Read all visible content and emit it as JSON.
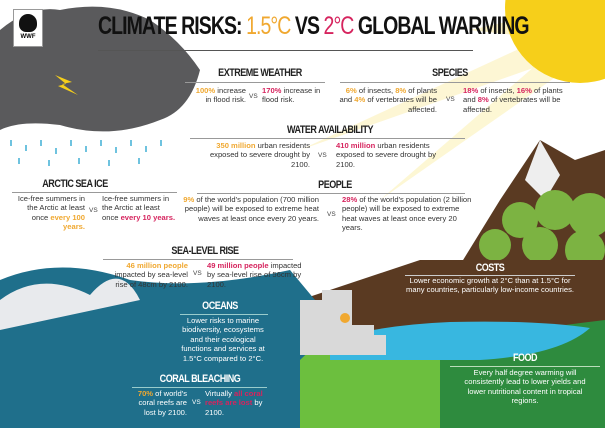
{
  "logo": {
    "text": "WWF"
  },
  "title": {
    "prefix": "CLIMATE RISKS: ",
    "a": "1.5°C",
    "mid": " VS ",
    "b": "2°C",
    "suffix": " GLOBAL WARMING"
  },
  "colors": {
    "low": "#f0a830",
    "high": "#d6245e",
    "cloud": "#5a5a5c",
    "sun": "#f6cf1a",
    "ocean": "#1f6f8b",
    "soil": "#5a3a22",
    "grass": "#3e9a3a",
    "lake": "#38b7e0"
  },
  "vs": "VS",
  "extreme_weather": {
    "title": "EXTREME WEATHER",
    "a": {
      "v": "100%",
      "t": " increase in flood risk."
    },
    "b": {
      "v": "170%",
      "t": " increase in flood risk."
    }
  },
  "species": {
    "title": "SPECIES",
    "a": {
      "v1": "6%",
      "t1": " of insects, ",
      "v2": "8%",
      "t2": " of plants and ",
      "v3": "4%",
      "t3": " of vertebrates will be affected."
    },
    "b": {
      "v1": "18%",
      "t1": " of insects, ",
      "v2": "16%",
      "t2": " of plants and ",
      "v3": "8%",
      "t3": " of vertebrates will be affected."
    }
  },
  "water": {
    "title": "WATER AVAILABILITY",
    "a": {
      "v": "350 million",
      "t": " urban residents exposed to severe drought by 2100."
    },
    "b": {
      "v": "410 million",
      "t": " urban residents exposed to severe drought by 2100."
    }
  },
  "arctic": {
    "title": "ARCTIC SEA ICE",
    "a": {
      "t": "Ice-free summers in the Arctic at least once ",
      "v": "every 100 years."
    },
    "b": {
      "t": "Ice-free summers in the Arctic at least once ",
      "v": "every 10 years."
    }
  },
  "people": {
    "title": "PEOPLE",
    "a": {
      "v": "9%",
      "t": " of the world's population (700 million people) will be exposed to extreme heat waves at least once every 20 years."
    },
    "b": {
      "v": "28%",
      "t": " of the world's population (2 billion people) will be exposed to extreme heat waves at least once every 20 years."
    }
  },
  "sea_level": {
    "title": "SEA-LEVEL RISE",
    "a": {
      "v": "46 million people",
      "t": " impacted by sea-level rise of 48cm by 2100."
    },
    "b": {
      "v": "49 million people",
      "t": " impacted by sea-level rise of 56cm by 2100."
    }
  },
  "costs": {
    "title": "COSTS",
    "text": "Lower economic growth at 2°C than at 1.5°C for many countries, particularly low-income countries."
  },
  "oceans": {
    "title": "OCEANS",
    "text": "Lower risks to marine biodiversity, ecosystems and their ecological functions and services at 1.5°C compared to 2°C."
  },
  "coral": {
    "title": "CORAL BLEACHING",
    "a": {
      "v": "70%",
      "t": " of world's coral reefs are lost by 2100."
    },
    "b": {
      "t1": "Virtually ",
      "v": "all coral reefs are lost",
      "t2": " by 2100."
    }
  },
  "food": {
    "title": "FOOD",
    "text": "Every half degree warming will consistently lead to lower yields and lower nutritional content in tropical regions."
  }
}
